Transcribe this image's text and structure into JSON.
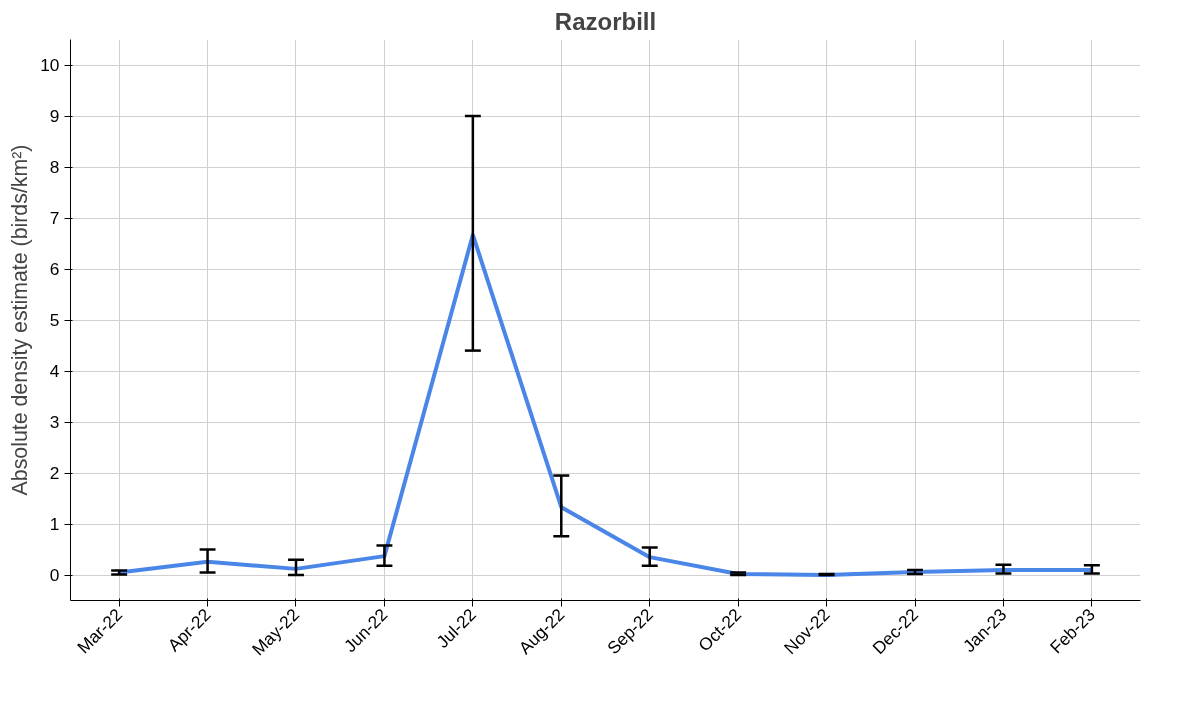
{
  "chart_data": {
    "type": "line",
    "title": "Razorbill",
    "ylabel": "Absolute density estimate (birds/km²)",
    "categories": [
      "Mar-22",
      "Apr-22",
      "May-22",
      "Jun-22",
      "Jul-22",
      "Aug-22",
      "Sep-22",
      "Oct-22",
      "Nov-22",
      "Dec-22",
      "Jan-23",
      "Feb-23"
    ],
    "series": [
      {
        "color": "#4a86e8",
        "values": [
          0.05,
          0.26,
          0.12,
          0.37,
          6.67,
          1.33,
          0.35,
          0.02,
          0.0,
          0.06,
          0.1,
          0.1
        ],
        "errors": [
          [
            0.01,
            0.09
          ],
          [
            0.05,
            0.5
          ],
          [
            0.0,
            0.3
          ],
          [
            0.18,
            0.58
          ],
          [
            4.4,
            9.0
          ],
          [
            0.76,
            1.95
          ],
          [
            0.18,
            0.54
          ],
          [
            0.0,
            0.05
          ],
          [
            0.0,
            0.02
          ],
          [
            0.02,
            0.1
          ],
          [
            0.03,
            0.2
          ],
          [
            0.03,
            0.19
          ]
        ]
      }
    ],
    "ylim": [
      -0.5,
      10.5
    ],
    "yticks": [
      0,
      1,
      2,
      3,
      4,
      5,
      6,
      7,
      8,
      9,
      10
    ],
    "grid": true,
    "marker": "none",
    "line_style": "solid"
  }
}
